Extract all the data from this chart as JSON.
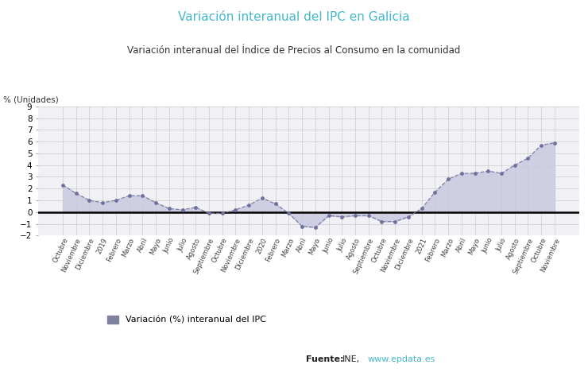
{
  "title": "Variación interanual del IPC en Galicia",
  "subtitle": "Variación interanual del Índice de Precios al Consumo en la comunidad",
  "ylabel_text": "% (Unidades)",
  "ylim": [
    -2,
    9
  ],
  "yticks": [
    -2,
    -1,
    0,
    1,
    2,
    3,
    4,
    5,
    6,
    7,
    8,
    9
  ],
  "line_color": "#8080a0",
  "fill_color": "#c8cadf",
  "marker_color": "#7070a0",
  "background_color": "#ffffff",
  "plot_bg_color": "#f0f0f5",
  "title_color": "#45b8c8",
  "subtitle_color": "#333333",
  "legend_label": "Variación (%) interanual del IPC",
  "source_bold": "Fuente:",
  "source_normal": " INE, ",
  "source_link": "www.epdata.es",
  "source_link_color": "#45b8c8",
  "labels": [
    "Octubre",
    "Noviembre",
    "Diciembre",
    "2019",
    "Febrero",
    "Marzo",
    "Abril",
    "Mayo",
    "Junio",
    "Julio",
    "Agosto",
    "Septiembre",
    "Octubre",
    "Noviembre",
    "Diciembre",
    "2020",
    "Febrero",
    "Marzo",
    "Abril",
    "Mayo",
    "Junio",
    "Julio",
    "Agosto",
    "Septiembre",
    "Octubre",
    "Noviembre",
    "Diciembre",
    "2021",
    "Febrero",
    "Marzo",
    "Abril",
    "Mayo",
    "Junio",
    "Julio",
    "Agosto",
    "Septiembre",
    "Octubre",
    "Noviembre"
  ],
  "values": [
    2.3,
    1.6,
    1.0,
    0.8,
    1.0,
    1.4,
    1.4,
    0.8,
    0.3,
    0.2,
    0.4,
    -0.1,
    -0.1,
    0.2,
    0.6,
    1.2,
    0.7,
    -0.1,
    -1.2,
    -1.3,
    -0.3,
    -0.4,
    -0.3,
    -0.3,
    -0.8,
    -0.8,
    -0.4,
    0.3,
    1.7,
    2.8,
    3.3,
    3.3,
    3.5,
    3.3,
    4.0,
    4.6,
    5.7,
    5.9
  ]
}
